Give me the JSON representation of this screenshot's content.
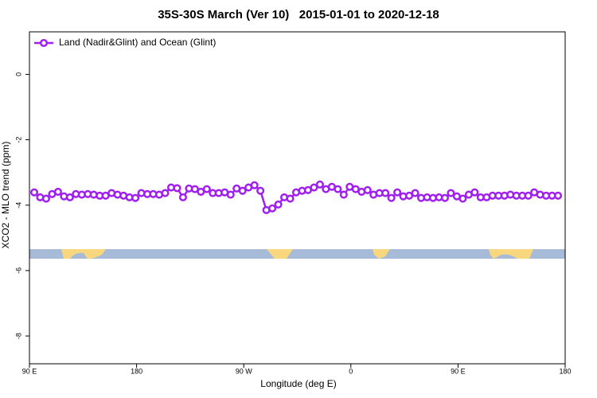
{
  "chart_data": {
    "type": "line",
    "title": "35S-30S March (Ver 10)   2015-01-01 to 2020-12-18",
    "x_label": "Longitude (deg E)",
    "y_label": "XCO2 - MLO trend (ppm)",
    "xlim": [
      90,
      540
    ],
    "xticks": [
      {
        "value": 90,
        "label": "90 E"
      },
      {
        "value": 180,
        "label": "180"
      },
      {
        "value": 270,
        "label": "90 W"
      },
      {
        "value": 360,
        "label": "0"
      },
      {
        "value": 450,
        "label": "90 E"
      },
      {
        "value": 540,
        "label": "180"
      }
    ],
    "ylim": [
      -8.85,
      1.3
    ],
    "yticks": [
      0,
      -2,
      -4,
      -6,
      -8
    ],
    "legend": "top-left",
    "x": [
      94,
      99,
      104,
      109,
      114,
      119,
      124,
      129,
      134,
      139,
      144,
      149,
      154,
      159,
      164,
      169,
      174,
      179,
      184,
      189,
      194,
      199,
      204,
      209,
      214,
      219,
      224,
      229,
      234,
      239,
      244,
      249,
      254,
      259,
      264,
      269,
      274,
      279,
      284,
      289,
      294,
      299,
      304,
      309,
      314,
      319,
      324,
      329,
      334,
      339,
      344,
      349,
      354,
      359,
      364,
      369,
      374,
      379,
      384,
      389,
      394,
      399,
      404,
      409,
      414,
      419,
      424,
      429,
      434,
      439,
      444,
      449,
      454,
      459,
      464,
      469,
      474,
      479,
      484,
      489,
      494,
      499,
      504,
      509,
      514,
      519,
      524,
      529,
      534
    ],
    "series": [
      {
        "name": "Land (Nadir&Glint) and Ocean (Glint)",
        "color": "#a020f0",
        "values": [
          -3.61,
          -3.76,
          -3.8,
          -3.66,
          -3.59,
          -3.73,
          -3.76,
          -3.66,
          -3.68,
          -3.66,
          -3.68,
          -3.71,
          -3.71,
          -3.63,
          -3.68,
          -3.71,
          -3.76,
          -3.78,
          -3.63,
          -3.66,
          -3.66,
          -3.68,
          -3.63,
          -3.46,
          -3.48,
          -3.76,
          -3.49,
          -3.51,
          -3.59,
          -3.51,
          -3.63,
          -3.63,
          -3.61,
          -3.68,
          -3.49,
          -3.56,
          -3.46,
          -3.39,
          -3.56,
          -4.15,
          -4.1,
          -3.98,
          -3.76,
          -3.8,
          -3.61,
          -3.56,
          -3.54,
          -3.46,
          -3.37,
          -3.51,
          -3.44,
          -3.51,
          -3.68,
          -3.44,
          -3.51,
          -3.59,
          -3.54,
          -3.68,
          -3.63,
          -3.63,
          -3.78,
          -3.61,
          -3.73,
          -3.71,
          -3.63,
          -3.78,
          -3.76,
          -3.78,
          -3.76,
          -3.78,
          -3.63,
          -3.73,
          -3.8,
          -3.68,
          -3.61,
          -3.76,
          -3.76,
          -3.71,
          -3.71,
          -3.71,
          -3.68,
          -3.71,
          -3.71,
          -3.71,
          -3.61,
          -3.68,
          -3.71,
          -3.71,
          -3.71
        ]
      }
    ]
  }
}
